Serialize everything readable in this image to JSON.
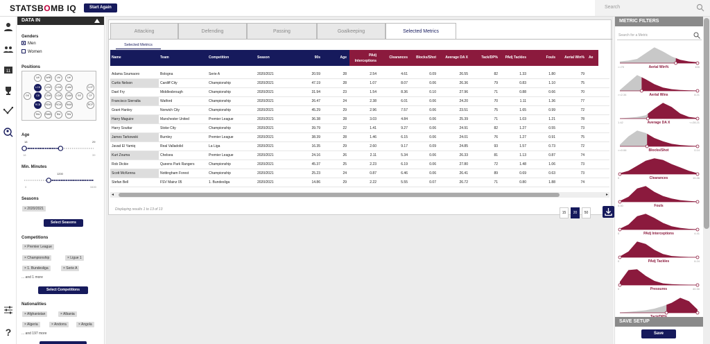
{
  "header": {
    "logo_prefix": "STATSB",
    "logo_accent": "O",
    "logo_suffix": "MB IQ",
    "start_again": "Start Again",
    "search_placeholder": "Search"
  },
  "sidebar_icons": [
    "user-icon",
    "group-icon",
    "team-icon",
    "trophy-icon",
    "network-icon",
    "search-person-icon",
    "sliders-icon",
    "help-icon"
  ],
  "data_in": {
    "title": "DATA IN",
    "genders_label": "Genders",
    "gender_options": [
      {
        "label": "Men",
        "checked": true
      },
      {
        "label": "Women",
        "checked": false
      }
    ],
    "positions_label": "Positions",
    "positions": [
      "LW",
      "LWB",
      "LM",
      "LW",
      "LCF",
      "GK",
      "LCB",
      "LCM",
      "LAM",
      "SS",
      "CF",
      "CB",
      "CDM",
      "CAM",
      "RCF",
      "RCB",
      "RDM",
      "RCM",
      "RAM",
      "RWB",
      "RM",
      "RW"
    ],
    "age_label": "Age",
    "age": {
      "selected": [
        18,
        29
      ],
      "min": 18,
      "max": 39,
      "min_text": "18",
      "max_text": "39",
      "sel_lo": "18",
      "sel_hi": "29"
    },
    "minutes_label": "Min. Minutes",
    "minutes": {
      "value": 1200,
      "min": 0,
      "max": 3400,
      "value_text": "1200",
      "min_text": "0",
      "max_text": "3400"
    },
    "seasons_label": "Seasons",
    "seasons": [
      "× 2020/2021"
    ],
    "select_seasons": "Select Seasons",
    "competitions_label": "Competitions",
    "competitions": [
      "× Premier League",
      "× Championship",
      "× Ligue 1",
      "× 1. Bundesliga",
      "× Serie A"
    ],
    "competitions_more": "... and 1 more",
    "select_competitions": "Select Competitions",
    "nationalities_label": "Nationalities",
    "nationalities": [
      "× Afghanistan",
      "× Albania",
      "× Algeria",
      "× Andorra",
      "× Angola"
    ],
    "nationalities_more": "... and 197 more"
  },
  "tabs": [
    "Attacking",
    "Defending",
    "Passing",
    "Goalkeeping",
    "Selected Metrics"
  ],
  "active_tab": "Selected Metrics",
  "subtab": "Selected Metrics",
  "table": {
    "columns": [
      "Name",
      "Team",
      "Competition",
      "Season",
      "90s",
      "Age",
      "PAdj Interceptions",
      "Clearances",
      "Blocks/Shot",
      "Average DA X",
      "Tack/DP%",
      "PAdj Tackles",
      "Fouls",
      "Aerial Win%",
      "Ae"
    ],
    "rows": [
      [
        "Adama Soumaoro",
        "Bologna",
        "Serie A",
        "2020/2021",
        "20.59",
        "28",
        "2.54",
        "4.61",
        "0.09",
        "26.55",
        "82",
        "1.33",
        "1.80",
        "79"
      ],
      [
        "Curtis Nelson",
        "Cardiff City",
        "Championship",
        "2020/2021",
        "47.19",
        "28",
        "1.07",
        "8.07",
        "0.06",
        "26.36",
        "79",
        "0.83",
        "1.10",
        "75"
      ],
      [
        "Dael Fry",
        "Middlesbrough",
        "Championship",
        "2020/2021",
        "31.94",
        "23",
        "1.54",
        "8.36",
        "0.10",
        "27.96",
        "71",
        "0.88",
        "0.66",
        "70"
      ],
      [
        "Francisco Sierralta",
        "Watford",
        "Championship",
        "2020/2021",
        "26.47",
        "24",
        "2.38",
        "6.01",
        "0.06",
        "24.20",
        "70",
        "1.11",
        "1.36",
        "77"
      ],
      [
        "Grant Hanley",
        "Norwich City",
        "Championship",
        "2020/2021",
        "45.29",
        "29",
        "2.96",
        "7.57",
        "0.06",
        "23.51",
        "75",
        "1.65",
        "0.99",
        "72"
      ],
      [
        "Harry Maguire",
        "Manchester United",
        "Premier League",
        "2020/2021",
        "36.38",
        "28",
        "3.03",
        "4.84",
        "0.06",
        "25.39",
        "71",
        "1.03",
        "1.21",
        "78"
      ],
      [
        "Harry Souttar",
        "Stoke City",
        "Championship",
        "2020/2021",
        "39.79",
        "22",
        "1.41",
        "9.27",
        "0.06",
        "24.91",
        "82",
        "1.27",
        "0.55",
        "73"
      ],
      [
        "James Tarkowski",
        "Burnley",
        "Premier League",
        "2020/2021",
        "38.39",
        "28",
        "1.46",
        "6.15",
        "0.06",
        "24.01",
        "76",
        "1.27",
        "0.91",
        "75"
      ],
      [
        "Javad El Yamiq",
        "Real Valladolid",
        "La Liga",
        "2020/2021",
        "16.35",
        "29",
        "2.60",
        "9.17",
        "0.09",
        "24.85",
        "93",
        "1.57",
        "0.73",
        "72"
      ],
      [
        "Kurt Zouma",
        "Chelsea",
        "Premier League",
        "2020/2021",
        "24.16",
        "26",
        "2.11",
        "5.34",
        "0.06",
        "26.33",
        "81",
        "1.13",
        "0.87",
        "74"
      ],
      [
        "Rob Dickie",
        "Queens Park Rangers",
        "Championship",
        "2020/2021",
        "45.37",
        "25",
        "2.23",
        "6.19",
        "0.06",
        "27.80",
        "72",
        "1.48",
        "1.06",
        "73"
      ],
      [
        "Scott McKenna",
        "Nottingham Forest",
        "Championship",
        "2020/2021",
        "25.23",
        "24",
        "0.87",
        "6.46",
        "0.06",
        "26.41",
        "89",
        "0.69",
        "0.63",
        "73"
      ],
      [
        "Stefan Bell",
        "FSV Mainz 05",
        "1. Bundesliga",
        "2020/2021",
        "14.86",
        "29",
        "2.22",
        "5.55",
        "0.07",
        "26.72",
        "71",
        "0.80",
        "1.88",
        "74"
      ]
    ],
    "summary": "Displaying results 1 to 13 of 13",
    "page_sizes": [
      "15",
      "20",
      "50"
    ],
    "active_page_size": "20"
  },
  "metric_filters": {
    "title": "METRIC FILTERS",
    "search_placeholder": "Search for a Metric",
    "metrics": [
      {
        "label": "Aerial Win%",
        "lo": ">=70",
        "hi": "100",
        "fill": 0.72
      },
      {
        "label": "Aerial Wins",
        "lo": ">=2.34",
        "hi": "8.21",
        "fill": 0.28
      },
      {
        "label": "Average DA X",
        "lo": "1.42",
        "hi": "<=28.21",
        "fill": 0.36
      },
      {
        "label": "Blocks/Shot",
        "lo": ">=0.06",
        "hi": "0.14",
        "fill": 0.35
      },
      {
        "label": "Clearances",
        "lo": "0",
        "hi": "10.46",
        "fill": 0.0
      },
      {
        "label": "Fouls",
        "lo": "0.00",
        "hi": "",
        "fill": 0.0
      },
      {
        "label": "PAdj Interceptions",
        "lo": "0",
        "hi": "4.41",
        "fill": 0.0
      },
      {
        "label": "PAdj Tackles",
        "lo": "0",
        "hi": "6.24",
        "fill": 0.0
      },
      {
        "label": "Pressures",
        "lo": "0",
        "hi": "40.30",
        "fill": 0.0
      },
      {
        "label": "Tack/DP%",
        "lo": "",
        "hi": "",
        "fill": 0.6
      }
    ]
  },
  "save_setup": {
    "title": "SAVE SETUP",
    "save": "Save"
  },
  "colors": {
    "navy": "#161a5c",
    "maroon": "#8b1a3d",
    "grey": "#8a8a8a"
  }
}
